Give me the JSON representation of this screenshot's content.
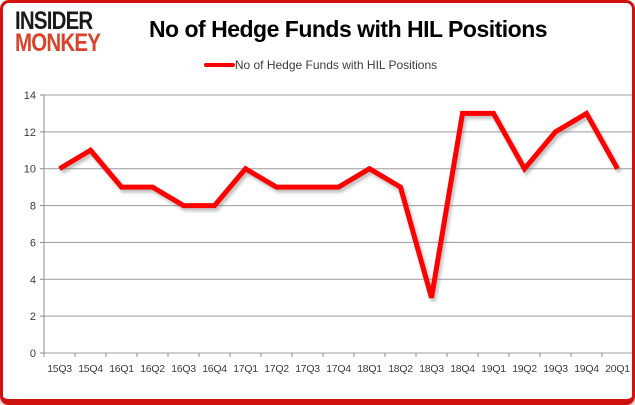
{
  "logo": {
    "line1": "INSIDER",
    "line2": "MONKEY"
  },
  "header": {
    "title": "No of Hedge Funds with HIL Positions"
  },
  "colors": {
    "line": "#ff0000",
    "frame_border": "#cf1210",
    "logo_accent": "#d9432c",
    "grid": "#9c9c9c",
    "axis": "#8c8c8c",
    "label": "#3b3b3b"
  },
  "chart_data": {
    "type": "line",
    "title": "No of Hedge Funds with HIL Positions",
    "categories": [
      "15Q3",
      "15Q4",
      "16Q1",
      "16Q2",
      "16Q3",
      "16Q4",
      "17Q1",
      "17Q2",
      "17Q3",
      "17Q4",
      "18Q1",
      "18Q2",
      "18Q3",
      "18Q4",
      "19Q1",
      "19Q2",
      "19Q3",
      "19Q4",
      "20Q1"
    ],
    "series": [
      {
        "name": "No of Hedge Funds with HIL Positions",
        "values": [
          10,
          11,
          9,
          9,
          8,
          8,
          10,
          9,
          9,
          9,
          10,
          9,
          3,
          13,
          13,
          10,
          12,
          13,
          10
        ]
      }
    ],
    "xlabel": "",
    "ylabel": "",
    "ylim": [
      0,
      14
    ],
    "yticks": [
      0,
      2,
      4,
      6,
      8,
      10,
      12,
      14
    ],
    "grid": true,
    "legend_position": "top"
  }
}
